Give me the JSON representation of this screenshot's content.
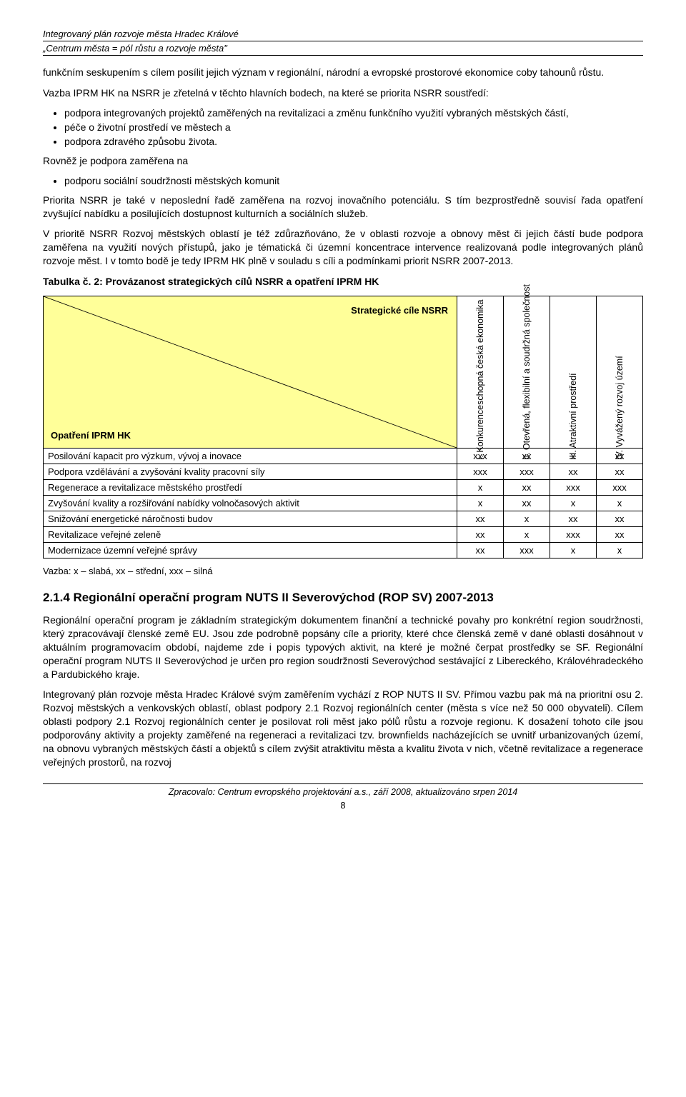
{
  "header": {
    "line1": "Integrovaný plán rozvoje města Hradec Králové",
    "line2": "„Centrum města = pól růstu a rozvoje města\""
  },
  "intro": {
    "p1": "funkčním seskupením s cílem posílit jejich význam v regionální, národní a evropské prostorové ekonomice coby tahounů růstu.",
    "p2": "Vazba IPRM HK na NSRR je zřetelná v těchto hlavních bodech, na které se priorita NSRR soustředí:",
    "bullets1": [
      "podpora integrovaných projektů zaměřených na revitalizaci a změnu funkčního využití vybraných městských částí,",
      "péče o životní prostředí ve městech a",
      "podpora zdravého způsobu života."
    ],
    "p3": "Rovněž  je podpora zaměřena na",
    "bullets2": [
      "podporu sociální soudržnosti městských komunit"
    ],
    "p4": "Priorita NSRR je také v neposlední řadě zaměřena na rozvoj inovačního potenciálu. S tím bezprostředně souvisí řada opatření zvyšující nabídku a posilujících dostupnost kulturních a sociálních služeb.",
    "p5": "V prioritě NSRR Rozvoj městských oblastí je též zdůrazňováno, že v oblasti rozvoje a obnovy měst či jejich částí bude podpora zaměřena na využití nových přístupů, jako je tématická či územní koncentrace intervence realizovaná podle integrovaných plánů rozvoje měst. I v tomto bodě je tedy IPRM HK plně v souladu s cíli a podmínkami priorit NSRR 2007-2013."
  },
  "table": {
    "caption": "Tabulka č. 2: Provázanost strategických cílů NSRR a opatření IPRM HK",
    "corner_top": "Strategické cíle NSRR",
    "corner_bottom": "Opatření IPRM HK",
    "columns": [
      "I. Konkurenceschopná česká ekonomika",
      "II. Otevřená, flexibilní a soudržná společnost",
      "III. Atraktivní prostředí",
      "IV. Vyvážený rozvoj území"
    ],
    "rows": [
      {
        "label": "Posilování kapacit pro výzkum, vývoj a inovace",
        "vals": [
          "xxx",
          "xx",
          "x",
          "xx"
        ]
      },
      {
        "label": "Podpora vzdělávání a zvyšování kvality pracovní síly",
        "vals": [
          "xxx",
          "xxx",
          "xx",
          "xx"
        ]
      },
      {
        "label": "Regenerace a revitalizace městského prostředí",
        "vals": [
          "x",
          "xx",
          "xxx",
          "xxx"
        ]
      },
      {
        "label": "Zvyšování kvality a rozšiřování nabídky volnočasových aktivit",
        "vals": [
          "x",
          "xx",
          "x",
          "x"
        ]
      },
      {
        "label": "Snižování energetické náročnosti budov",
        "vals": [
          "xx",
          "x",
          "xx",
          "xx"
        ]
      },
      {
        "label": "Revitalizace veřejné zeleně",
        "vals": [
          "xx",
          "x",
          "xxx",
          "xx"
        ]
      },
      {
        "label": "Modernizace územní veřejné správy",
        "vals": [
          "xx",
          "xxx",
          "x",
          "x"
        ]
      }
    ],
    "note": "Vazba: x – slabá, xx – střední, xxx – silná"
  },
  "section": {
    "title": "2.1.4 Regionální operační program NUTS II Severovýchod (ROP SV) 2007-2013",
    "p1": "Regionální operační program je základním strategickým dokumentem finanční a technické povahy pro konkrétní region soudržnosti, který zpracovávají členské země EU. Jsou zde podrobně popsány cíle a priority, které chce členská země v dané oblasti dosáhnout v aktuálním programovacím období, najdeme zde i popis typových aktivit, na které je možné čerpat prostředky se SF. Regionální operační program NUTS II Severovýchod je určen pro region soudržnosti Severovýchod sestávající z Libereckého, Královéhradeckého a Pardubického kraje.",
    "p2": "Integrovaný plán rozvoje města Hradec Králové svým zaměřením vychází z ROP NUTS II SV. Přímou vazbu pak má na prioritní osu 2.  Rozvoj městských a venkovských oblastí, oblast podpory 2.1 Rozvoj regionálních center (města s více než 50 000 obyvateli). Cílem oblasti podpory 2.1 Rozvoj regionálních center je posilovat roli měst jako pólů růstu a rozvoje regionu. K dosažení tohoto cíle jsou podporovány aktivity a projekty zaměřené na regeneraci a revitalizaci tzv. brownfields nacházejících se uvnitř urbanizovaných území, na obnovu vybraných městských částí a objektů s cílem zvýšit atraktivitu města a kvalitu života v nich, včetně revitalizace a regenerace veřejných prostorů, na rozvoj"
  },
  "footer": {
    "text": "Zpracovalo: Centrum evropského projektování a.s., září 2008, aktualizováno srpen 2014",
    "page": "8"
  }
}
